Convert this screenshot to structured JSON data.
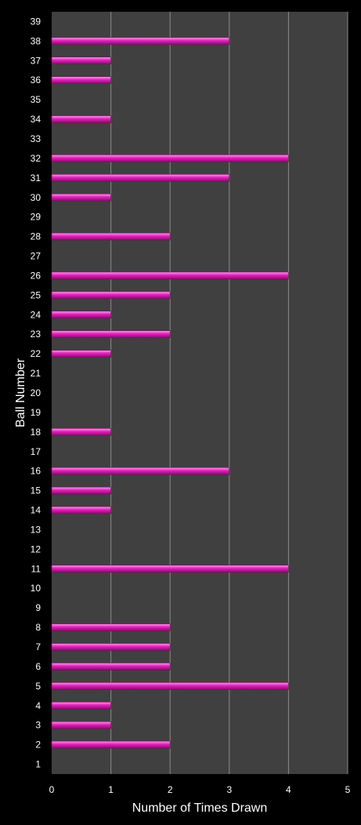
{
  "chart_data": {
    "type": "bar",
    "orientation": "horizontal",
    "title": "",
    "xlabel": "Number of Times Drawn",
    "ylabel": "Ball Number",
    "xlim": [
      0,
      5
    ],
    "x_ticks": [
      "0",
      "1",
      "2",
      "3",
      "4",
      "5"
    ],
    "grid": "vertical",
    "categories": [
      "1",
      "2",
      "3",
      "4",
      "5",
      "6",
      "7",
      "8",
      "9",
      "10",
      "11",
      "12",
      "13",
      "14",
      "15",
      "16",
      "17",
      "18",
      "19",
      "20",
      "21",
      "22",
      "23",
      "24",
      "25",
      "26",
      "27",
      "28",
      "29",
      "30",
      "31",
      "32",
      "33",
      "34",
      "35",
      "36",
      "37",
      "38",
      "39"
    ],
    "values": [
      0,
      2,
      1,
      1,
      4,
      2,
      2,
      2,
      0,
      0,
      4,
      0,
      0,
      1,
      1,
      3,
      0,
      1,
      0,
      0,
      0,
      1,
      2,
      1,
      2,
      4,
      0,
      2,
      0,
      1,
      3,
      4,
      0,
      1,
      0,
      1,
      1,
      3,
      0
    ],
    "bar_color": "#e020b8",
    "plot_background": "#404040",
    "page_background": "#000000"
  }
}
